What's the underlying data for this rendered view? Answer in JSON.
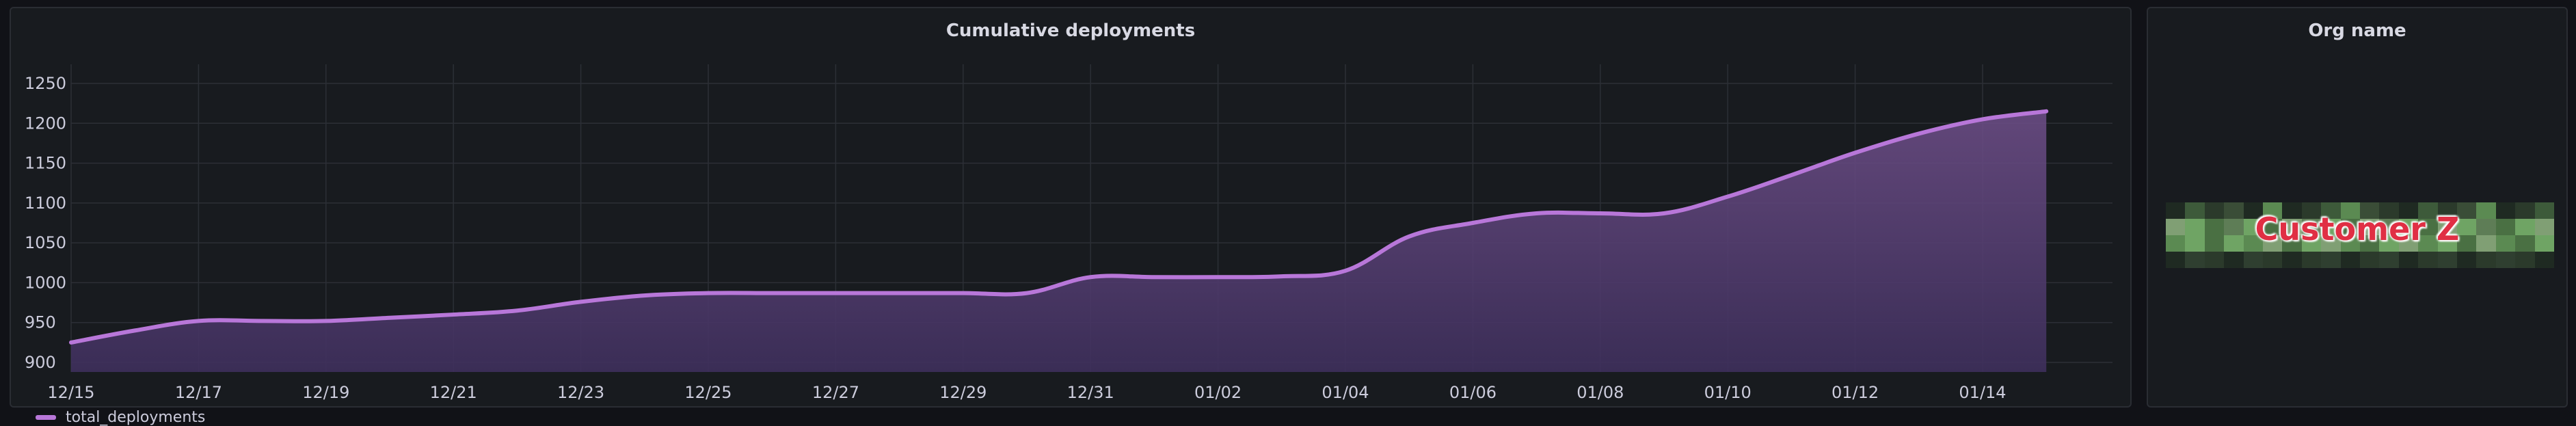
{
  "panels": {
    "chart": {
      "title": "Cumulative deployments"
    },
    "org": {
      "title": "Org name",
      "value": "Customer Z"
    }
  },
  "colors": {
    "series": "#b877d9",
    "fill_top": "#6f4f8a",
    "fill_bottom": "#3e2f5c",
    "grid": "#2c2f36",
    "background": "#181b1f"
  },
  "chart_data": {
    "type": "area",
    "title": "Cumulative deployments",
    "xlabel": "",
    "ylabel": "",
    "ylim": [
      888,
      1262
    ],
    "y_ticks": [
      900,
      950,
      1000,
      1050,
      1100,
      1150,
      1200,
      1250
    ],
    "x_tick_labels": [
      "12/15",
      "12/17",
      "12/19",
      "12/21",
      "12/23",
      "12/25",
      "12/27",
      "12/29",
      "12/31",
      "01/02",
      "01/04",
      "01/06",
      "01/08",
      "01/10",
      "01/12",
      "01/14"
    ],
    "x": [
      "12/15",
      "12/16",
      "12/17",
      "12/18",
      "12/19",
      "12/20",
      "12/21",
      "12/22",
      "12/23",
      "12/24",
      "12/25",
      "12/26",
      "12/27",
      "12/28",
      "12/29",
      "12/30",
      "12/31",
      "01/01",
      "01/02",
      "01/03",
      "01/04",
      "01/05",
      "01/06",
      "01/07",
      "01/08",
      "01/09",
      "01/10",
      "01/11",
      "01/12",
      "01/13",
      "01/14",
      "01/15"
    ],
    "series": [
      {
        "name": "total_deployments",
        "values": [
          925,
          940,
          952,
          952,
          952,
          956,
          960,
          965,
          976,
          984,
          987,
          987,
          987,
          987,
          987,
          987,
          1007,
          1007,
          1007,
          1008,
          1015,
          1058,
          1075,
          1087,
          1087,
          1087,
          1108,
          1135,
          1163,
          1187,
          1205,
          1215
        ]
      }
    ],
    "grid": true,
    "legend": "bottom-left"
  }
}
